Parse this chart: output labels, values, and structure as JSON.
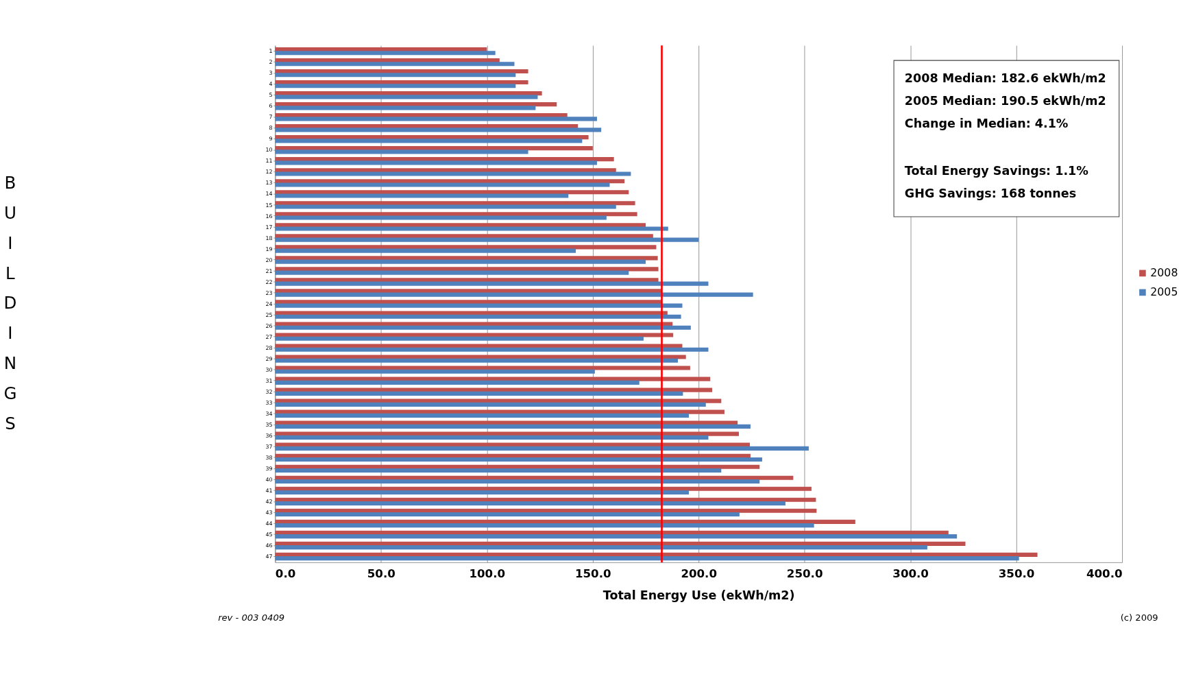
{
  "chart_data": {
    "type": "bar",
    "orientation": "horizontal",
    "xlabel": "Total Energy Use (ekWh/m2)",
    "ylabel": "BUILDINGS",
    "categories": [
      "1",
      "2",
      "3",
      "4",
      "5",
      "6",
      "7",
      "8",
      "9",
      "10",
      "11",
      "12",
      "13",
      "14",
      "15",
      "16",
      "17",
      "18",
      "19",
      "20",
      "21",
      "22",
      "23",
      "24",
      "25",
      "26",
      "27",
      "28",
      "29",
      "30",
      "31",
      "32",
      "33",
      "34",
      "35",
      "36",
      "37",
      "38",
      "39",
      "40",
      "41",
      "42",
      "43",
      "44",
      "45",
      "46",
      "47"
    ],
    "series": [
      {
        "name": "2008",
        "color": "#c0504d",
        "values": [
          100,
          106,
          119.5,
          119.5,
          126,
          133,
          138,
          143,
          148,
          150,
          160,
          161,
          165,
          167,
          170,
          171,
          175,
          178.5,
          180,
          180.7,
          181,
          181,
          182.5,
          182.5,
          185.3,
          187.7,
          188,
          192.3,
          194,
          196,
          205.5,
          206.4,
          210.7,
          212.2,
          218.4,
          219,
          224.2,
          224.5,
          228.8,
          244.7,
          253.3,
          255.4,
          255.7,
          274,
          318,
          326,
          360
        ]
      },
      {
        "name": "2005",
        "color": "#4f81bd",
        "values": [
          104,
          113,
          113.6,
          113.6,
          124,
          123,
          152,
          154,
          145,
          119.5,
          152,
          168,
          158,
          138.5,
          161,
          156.5,
          185.6,
          200,
          142,
          175,
          167,
          204.6,
          225.7,
          192.3,
          191.7,
          196.3,
          174,
          204.6,
          190.2,
          151,
          172,
          192.6,
          203.4,
          195.4,
          224.5,
          204.6,
          252,
          230,
          210.7,
          228.8,
          195.4,
          241,
          219.3,
          254.5,
          322,
          308,
          351.3
        ]
      }
    ],
    "xlim": [
      0,
      400
    ],
    "xticks": [
      {
        "value": 0,
        "label": "0.0"
      },
      {
        "value": 50,
        "label": "50.0"
      },
      {
        "value": 100,
        "label": "100.0"
      },
      {
        "value": 150,
        "label": "150.0"
      },
      {
        "value": 200,
        "label": "200.0"
      },
      {
        "value": 250,
        "label": "250.0"
      },
      {
        "value": 300,
        "label": "300.0"
      },
      {
        "value": 350,
        "label": "350.0"
      },
      {
        "value": 400,
        "label": "400.0"
      }
    ],
    "grid": "x",
    "legend": "right",
    "ref_lines": [
      {
        "axis": "x",
        "value": 182.6,
        "color": "#ff0000"
      }
    ],
    "annotations": [
      "2008 Median:  182.6 ekWh/m2",
      "2005 Median:  190.5 ekWh/m2",
      "Change in Median:  4.1%",
      "Total  Energy Savings:  1.1%",
      "GHG Savings:   168 tonnes",
      "rev - 003 0409",
      "(c) 2009"
    ]
  }
}
